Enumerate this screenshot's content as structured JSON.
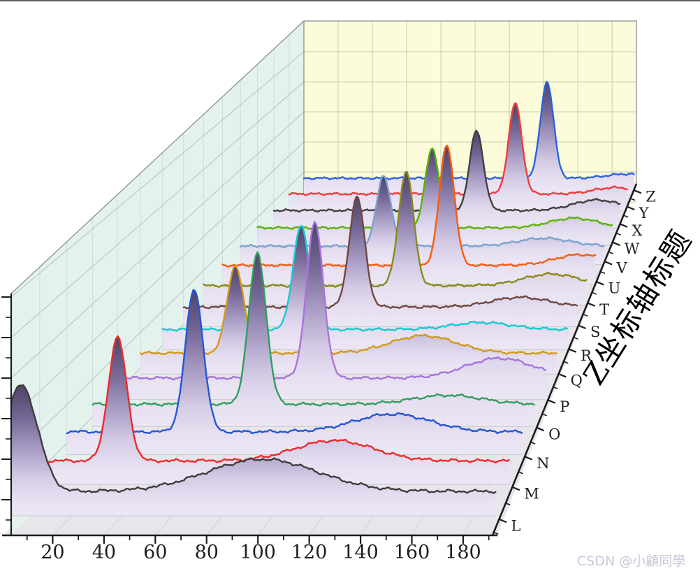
{
  "watermark": {
    "text": "CSDN @小顧同學",
    "color": "#cdc5da"
  },
  "axes": {
    "x": {
      "tick_labels": [
        "20",
        "40",
        "60",
        "80",
        "100",
        "120",
        "140",
        "160",
        "180"
      ],
      "tick_values": [
        20,
        40,
        60,
        80,
        100,
        120,
        140,
        160,
        180
      ],
      "minor_tick_values": [
        10,
        30,
        50,
        70,
        90,
        110,
        130,
        150,
        170,
        190
      ],
      "range": [
        0,
        193
      ],
      "label_color": "#1f1f1f"
    },
    "depth": {
      "labels": [
        "L",
        "M",
        "N",
        "O",
        "P",
        "Q",
        "R",
        "S",
        "T",
        "U",
        "V",
        "W",
        "X",
        "Y",
        "Z"
      ],
      "title": "Z坐标轴标题",
      "label_color": "#1f1f1f"
    },
    "z": {
      "has_labels": false
    }
  },
  "walls": {
    "left": "#e4f2ee",
    "back": "#fcfcdb",
    "floor": "#e9e6eb",
    "grid_back": "#c9c9b4",
    "grid_left": "#b4c1bd",
    "grid_left_faint": "#cdd9d5",
    "floor_grid": "#d4d1d7",
    "strip_edge": "#c8c5cb",
    "edge": "#8e8e8e",
    "axis_color": "#1c1c1c"
  },
  "fill_gradient": {
    "stops": [
      {
        "o": 0,
        "c": "#4e4367"
      },
      {
        "o": 0.25,
        "c": "#746795"
      },
      {
        "o": 0.5,
        "c": "#ab9ec6"
      },
      {
        "o": 0.7,
        "c": "#d3cae4"
      },
      {
        "o": 0.85,
        "c": "#e5def0"
      },
      {
        "o": 1,
        "c": "#ece7f5"
      }
    ]
  },
  "chart_data": {
    "type": "line",
    "variant": "3d_waterfall",
    "x_range": [
      0,
      193
    ],
    "x_axis_title": "",
    "z_axis_title": "Z坐标轴标题",
    "grid": true,
    "series": [
      {
        "name": "L",
        "color": "#3e3e3e",
        "peak_x": 4,
        "peak_h": 152,
        "peak_w": 6.5,
        "bump_x": 100,
        "bump_h": 46,
        "bump_w": 22
      },
      {
        "name": "M",
        "color": "#ee2b2b",
        "peak_x": 32,
        "peak_h": 182,
        "peak_w": 3.8,
        "bump_x": 121,
        "bump_h": 30,
        "bump_w": 16
      },
      {
        "name": "N",
        "color": "#2456d6",
        "peak_x": 54,
        "peak_h": 217,
        "peak_w": 3.8,
        "bump_x": 138,
        "bump_h": 27,
        "bump_w": 16
      },
      {
        "name": "O",
        "color": "#2f9e60",
        "peak_x": 72,
        "peak_h": 237,
        "peak_w": 3.8,
        "bump_x": 155,
        "bump_h": 14,
        "bump_w": 15
      },
      {
        "name": "P",
        "color": "#a873dd",
        "peak_x": 89,
        "peak_h": 252,
        "peak_w": 3.8,
        "bump_x": 172,
        "bump_h": 32,
        "bump_w": 15
      },
      {
        "name": "Q",
        "color": "#d2991a",
        "peak_x": 44,
        "peak_h": 146,
        "peak_w": 3.8,
        "bump_x": 131,
        "bump_h": 29,
        "bump_w": 15
      },
      {
        "name": "R",
        "color": "#16cad0",
        "peak_x": 66,
        "peak_h": 178,
        "peak_w": 3.8,
        "bump_x": 152,
        "bump_h": 12,
        "bump_w": 14
      },
      {
        "name": "S",
        "color": "#6f4843",
        "peak_x": 85,
        "peak_h": 194,
        "peak_w": 3.8,
        "bump_x": 165,
        "bump_h": 17,
        "bump_w": 14
      },
      {
        "name": "T",
        "color": "#8a8a1a",
        "peak_x": 102,
        "peak_h": 207,
        "peak_w": 3.8,
        "bump_x": 175,
        "bump_h": 21,
        "bump_w": 14
      },
      {
        "name": "U",
        "color": "#f85c10",
        "peak_x": 116,
        "peak_h": 224,
        "peak_w": 3.8,
        "bump_x": 185,
        "bump_h": 20,
        "bump_w": 13
      },
      {
        "name": "V",
        "color": "#7ba3d1",
        "peak_x": 76,
        "peak_h": 134,
        "peak_w": 3.8,
        "bump_x": 161,
        "bump_h": 15,
        "bump_w": 14
      },
      {
        "name": "W",
        "color": "#5ab306",
        "peak_x": 95,
        "peak_h": 155,
        "peak_w": 3.8,
        "bump_x": 172,
        "bump_h": 19,
        "bump_w": 13
      },
      {
        "name": "X",
        "color": "#404040",
        "peak_x": 113,
        "peak_h": 160,
        "peak_w": 3.8,
        "bump_x": 180,
        "bump_h": 21,
        "bump_w": 13
      },
      {
        "name": "Y",
        "color": "#f13c3c",
        "peak_x": 129,
        "peak_h": 186,
        "peak_w": 3.8,
        "bump_x": 186,
        "bump_h": 13,
        "bump_w": 12
      },
      {
        "name": "Z",
        "color": "#2a63de",
        "peak_x": 142,
        "peak_h": 203,
        "peak_w": 3.8,
        "bump_x": 189,
        "bump_h": 9,
        "bump_w": 12
      }
    ]
  }
}
